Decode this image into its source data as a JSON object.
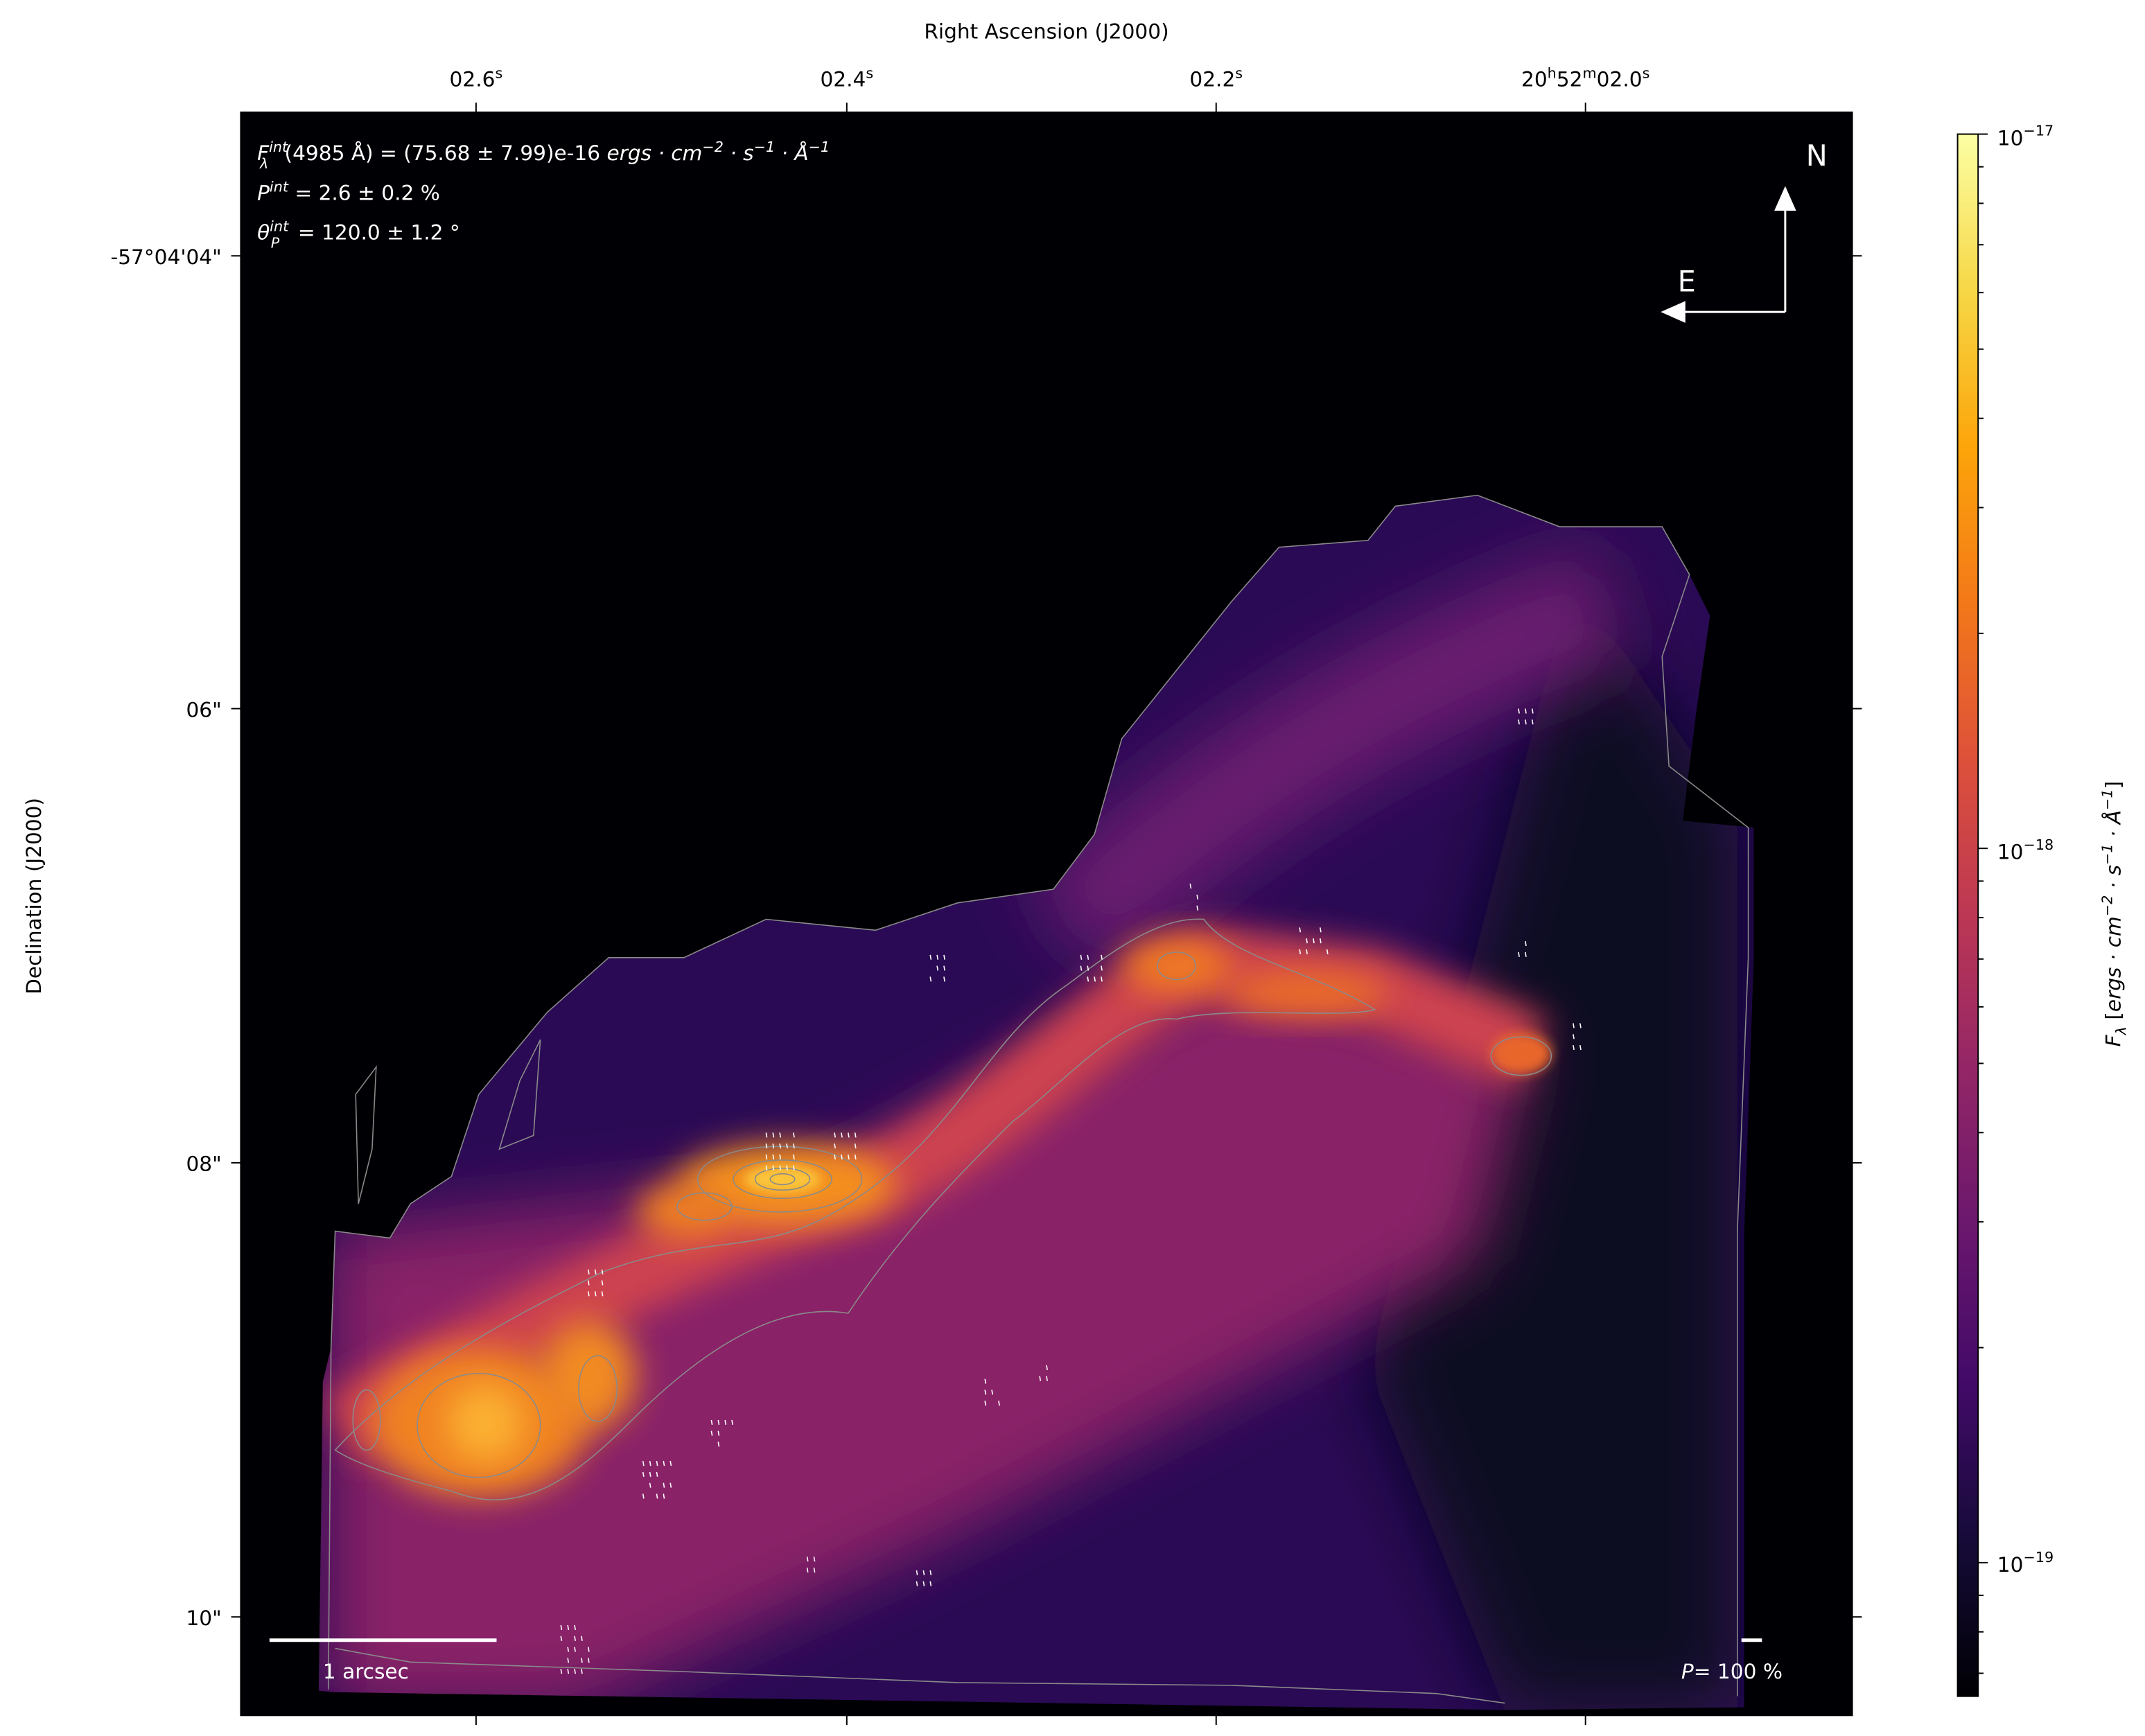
{
  "chart_data": {
    "type": "heatmap",
    "title": "",
    "colormap": "inferno",
    "xlabel": "Right Ascension (J2000)",
    "ylabel": "Declination (J2000)",
    "x_axis_position": "top",
    "x_ticks": [
      {
        "main": "02.6",
        "sup": "s"
      },
      {
        "main": "02.4",
        "sup": "s"
      },
      {
        "main": "02.2",
        "sup": "s"
      },
      {
        "h": "20",
        "h_sup": "h",
        "m": "52",
        "m_sup": "m",
        "main": "02.0",
        "sup": "s"
      }
    ],
    "y_ticks": [
      "-57°04'04\"",
      "06\"",
      "08\"",
      "10\""
    ],
    "colorbar": {
      "scale": "log",
      "range": [
        6.5e-20,
        1e-17
      ],
      "ticks": [
        {
          "base": "10",
          "exp": "−17",
          "value": 1e-17
        },
        {
          "base": "10",
          "exp": "−18",
          "value": 1e-18
        },
        {
          "base": "10",
          "exp": "−19",
          "value": 1e-19
        }
      ],
      "label": {
        "f": "F",
        "sub": "λ",
        "p1": " [",
        "u1": "ergs · cm",
        "e1": "−2",
        "u2": " · s",
        "e2": "−1",
        "u3": " · Å",
        "e3": "−1",
        "p2": "]"
      },
      "position": "right"
    },
    "annotations": {
      "flux": {
        "f": "F",
        "sub": "λ",
        "sup": "int",
        "text": "(4985 Å) = (75.68 ± 7.99)e-16 ",
        "u1": "ergs · cm",
        "e1": "−2",
        "u2": " · s",
        "e2": "−1",
        "u3": " · Å",
        "e3": "−1"
      },
      "pol": {
        "p": "P",
        "sup": "int",
        "text": " = 2.6 ± 0.2 %"
      },
      "angle": {
        "theta": "θ",
        "sub": "P",
        "sup": "int",
        "text": " = 120.0 ± 1.2 °"
      },
      "compass": {
        "north": "N",
        "east": "E"
      },
      "scale_bar": "1 arcsec",
      "pol_scale": {
        "p": "P",
        "text": "= 100 %"
      }
    },
    "contours": true,
    "polarization_vectors": true
  }
}
